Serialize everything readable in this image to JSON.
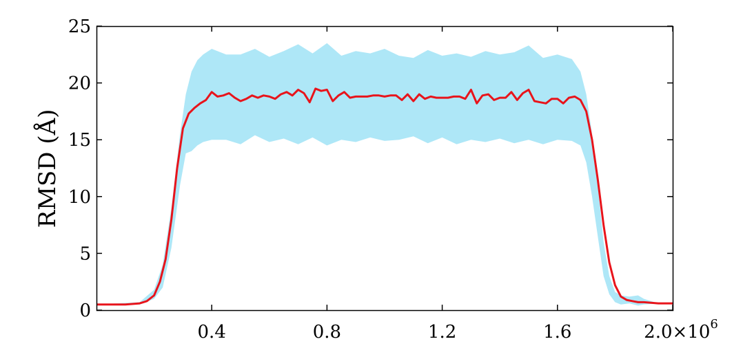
{
  "chart_data": {
    "type": "line",
    "title": "",
    "xlabel": "",
    "ylabel": "RMSD (Å)",
    "xlim": [
      0,
      2000000
    ],
    "ylim": [
      0,
      25
    ],
    "x_ticks": [
      400000,
      800000,
      1200000,
      1600000,
      2000000
    ],
    "x_tick_labels": [
      "0.4",
      "0.8",
      "1.2",
      "1.6",
      "2.0×10"
    ],
    "x_exponent_label": "6",
    "y_ticks": [
      0,
      5,
      10,
      15,
      20,
      25
    ],
    "y_tick_labels": [
      "0",
      "5",
      "10",
      "15",
      "20",
      "25"
    ],
    "grid": false,
    "colors": {
      "mean_line": "#e8141b",
      "band": "#aee7f7",
      "axes": "#000000"
    },
    "band": {
      "x": [
        0,
        150000,
        200000,
        230000,
        260000,
        290000,
        310000,
        330000,
        350000,
        370000,
        400000,
        450000,
        500000,
        550000,
        600000,
        650000,
        700000,
        750000,
        800000,
        850000,
        900000,
        950000,
        1000000,
        1050000,
        1100000,
        1150000,
        1200000,
        1250000,
        1300000,
        1350000,
        1400000,
        1450000,
        1500000,
        1550000,
        1600000,
        1650000,
        1680000,
        1700000,
        1720000,
        1740000,
        1760000,
        1780000,
        1800000,
        1820000,
        1850000,
        1880000,
        1900000,
        1950000,
        2000000
      ],
      "upper": [
        0.5,
        0.7,
        1.8,
        4.0,
        9.0,
        15.5,
        19.0,
        21.0,
        22.0,
        22.5,
        23.0,
        22.5,
        22.5,
        23.0,
        22.3,
        22.8,
        23.4,
        22.6,
        23.5,
        22.4,
        22.8,
        22.6,
        23.0,
        22.4,
        22.2,
        22.9,
        22.4,
        22.6,
        22.3,
        22.8,
        22.5,
        22.7,
        23.3,
        22.2,
        22.5,
        22.1,
        21.0,
        19.0,
        15.5,
        11.0,
        6.0,
        3.0,
        1.6,
        1.3,
        1.2,
        1.3,
        1.0,
        0.6,
        0.6
      ],
      "lower": [
        0.5,
        0.5,
        1.0,
        2.0,
        5.5,
        11.0,
        13.8,
        14.0,
        14.5,
        14.8,
        15.0,
        15.0,
        14.6,
        15.4,
        14.8,
        15.1,
        14.6,
        15.2,
        14.5,
        15.0,
        14.8,
        15.2,
        14.9,
        15.0,
        15.3,
        14.7,
        15.2,
        14.6,
        15.0,
        14.8,
        15.1,
        14.7,
        15.0,
        14.6,
        15.0,
        14.9,
        14.5,
        13.0,
        10.0,
        6.5,
        3.0,
        1.4,
        0.7,
        0.5,
        0.6,
        0.4,
        0.5,
        0.6,
        0.6
      ]
    },
    "series": [
      {
        "x": [
          0,
          100000,
          150000,
          175000,
          200000,
          220000,
          240000,
          260000,
          280000,
          300000,
          320000,
          340000,
          360000,
          380000,
          400000,
          420000,
          440000,
          460000,
          480000,
          500000,
          520000,
          540000,
          560000,
          580000,
          600000,
          620000,
          640000,
          660000,
          680000,
          700000,
          720000,
          740000,
          760000,
          780000,
          800000,
          820000,
          840000,
          860000,
          880000,
          900000,
          920000,
          940000,
          960000,
          980000,
          1000000,
          1020000,
          1040000,
          1060000,
          1080000,
          1100000,
          1120000,
          1140000,
          1160000,
          1180000,
          1200000,
          1220000,
          1240000,
          1260000,
          1280000,
          1300000,
          1320000,
          1340000,
          1360000,
          1380000,
          1400000,
          1420000,
          1440000,
          1460000,
          1480000,
          1500000,
          1520000,
          1540000,
          1560000,
          1580000,
          1600000,
          1620000,
          1640000,
          1660000,
          1680000,
          1700000,
          1720000,
          1740000,
          1760000,
          1780000,
          1800000,
          1820000,
          1840000,
          1860000,
          1880000,
          1900000,
          1950000,
          2000000
        ],
        "y": [
          0.5,
          0.5,
          0.6,
          0.8,
          1.3,
          2.5,
          4.5,
          8.0,
          12.5,
          16.0,
          17.3,
          17.8,
          18.2,
          18.5,
          19.2,
          18.8,
          18.9,
          19.1,
          18.7,
          18.4,
          18.6,
          18.9,
          18.7,
          18.9,
          18.8,
          18.6,
          19.0,
          19.2,
          18.9,
          19.4,
          19.1,
          18.3,
          19.5,
          19.3,
          19.4,
          18.4,
          18.9,
          19.2,
          18.7,
          18.8,
          18.8,
          18.8,
          18.9,
          18.9,
          18.8,
          18.9,
          18.9,
          18.5,
          19.0,
          18.4,
          19.0,
          18.6,
          18.8,
          18.7,
          18.7,
          18.7,
          18.8,
          18.8,
          18.6,
          19.4,
          18.2,
          18.9,
          19.0,
          18.5,
          18.7,
          18.7,
          19.2,
          18.5,
          19.1,
          19.4,
          18.4,
          18.3,
          18.2,
          18.6,
          18.6,
          18.2,
          18.7,
          18.8,
          18.5,
          17.5,
          15.0,
          11.5,
          7.5,
          4.2,
          2.2,
          1.2,
          0.9,
          0.8,
          0.7,
          0.7,
          0.6,
          0.6
        ]
      }
    ]
  }
}
